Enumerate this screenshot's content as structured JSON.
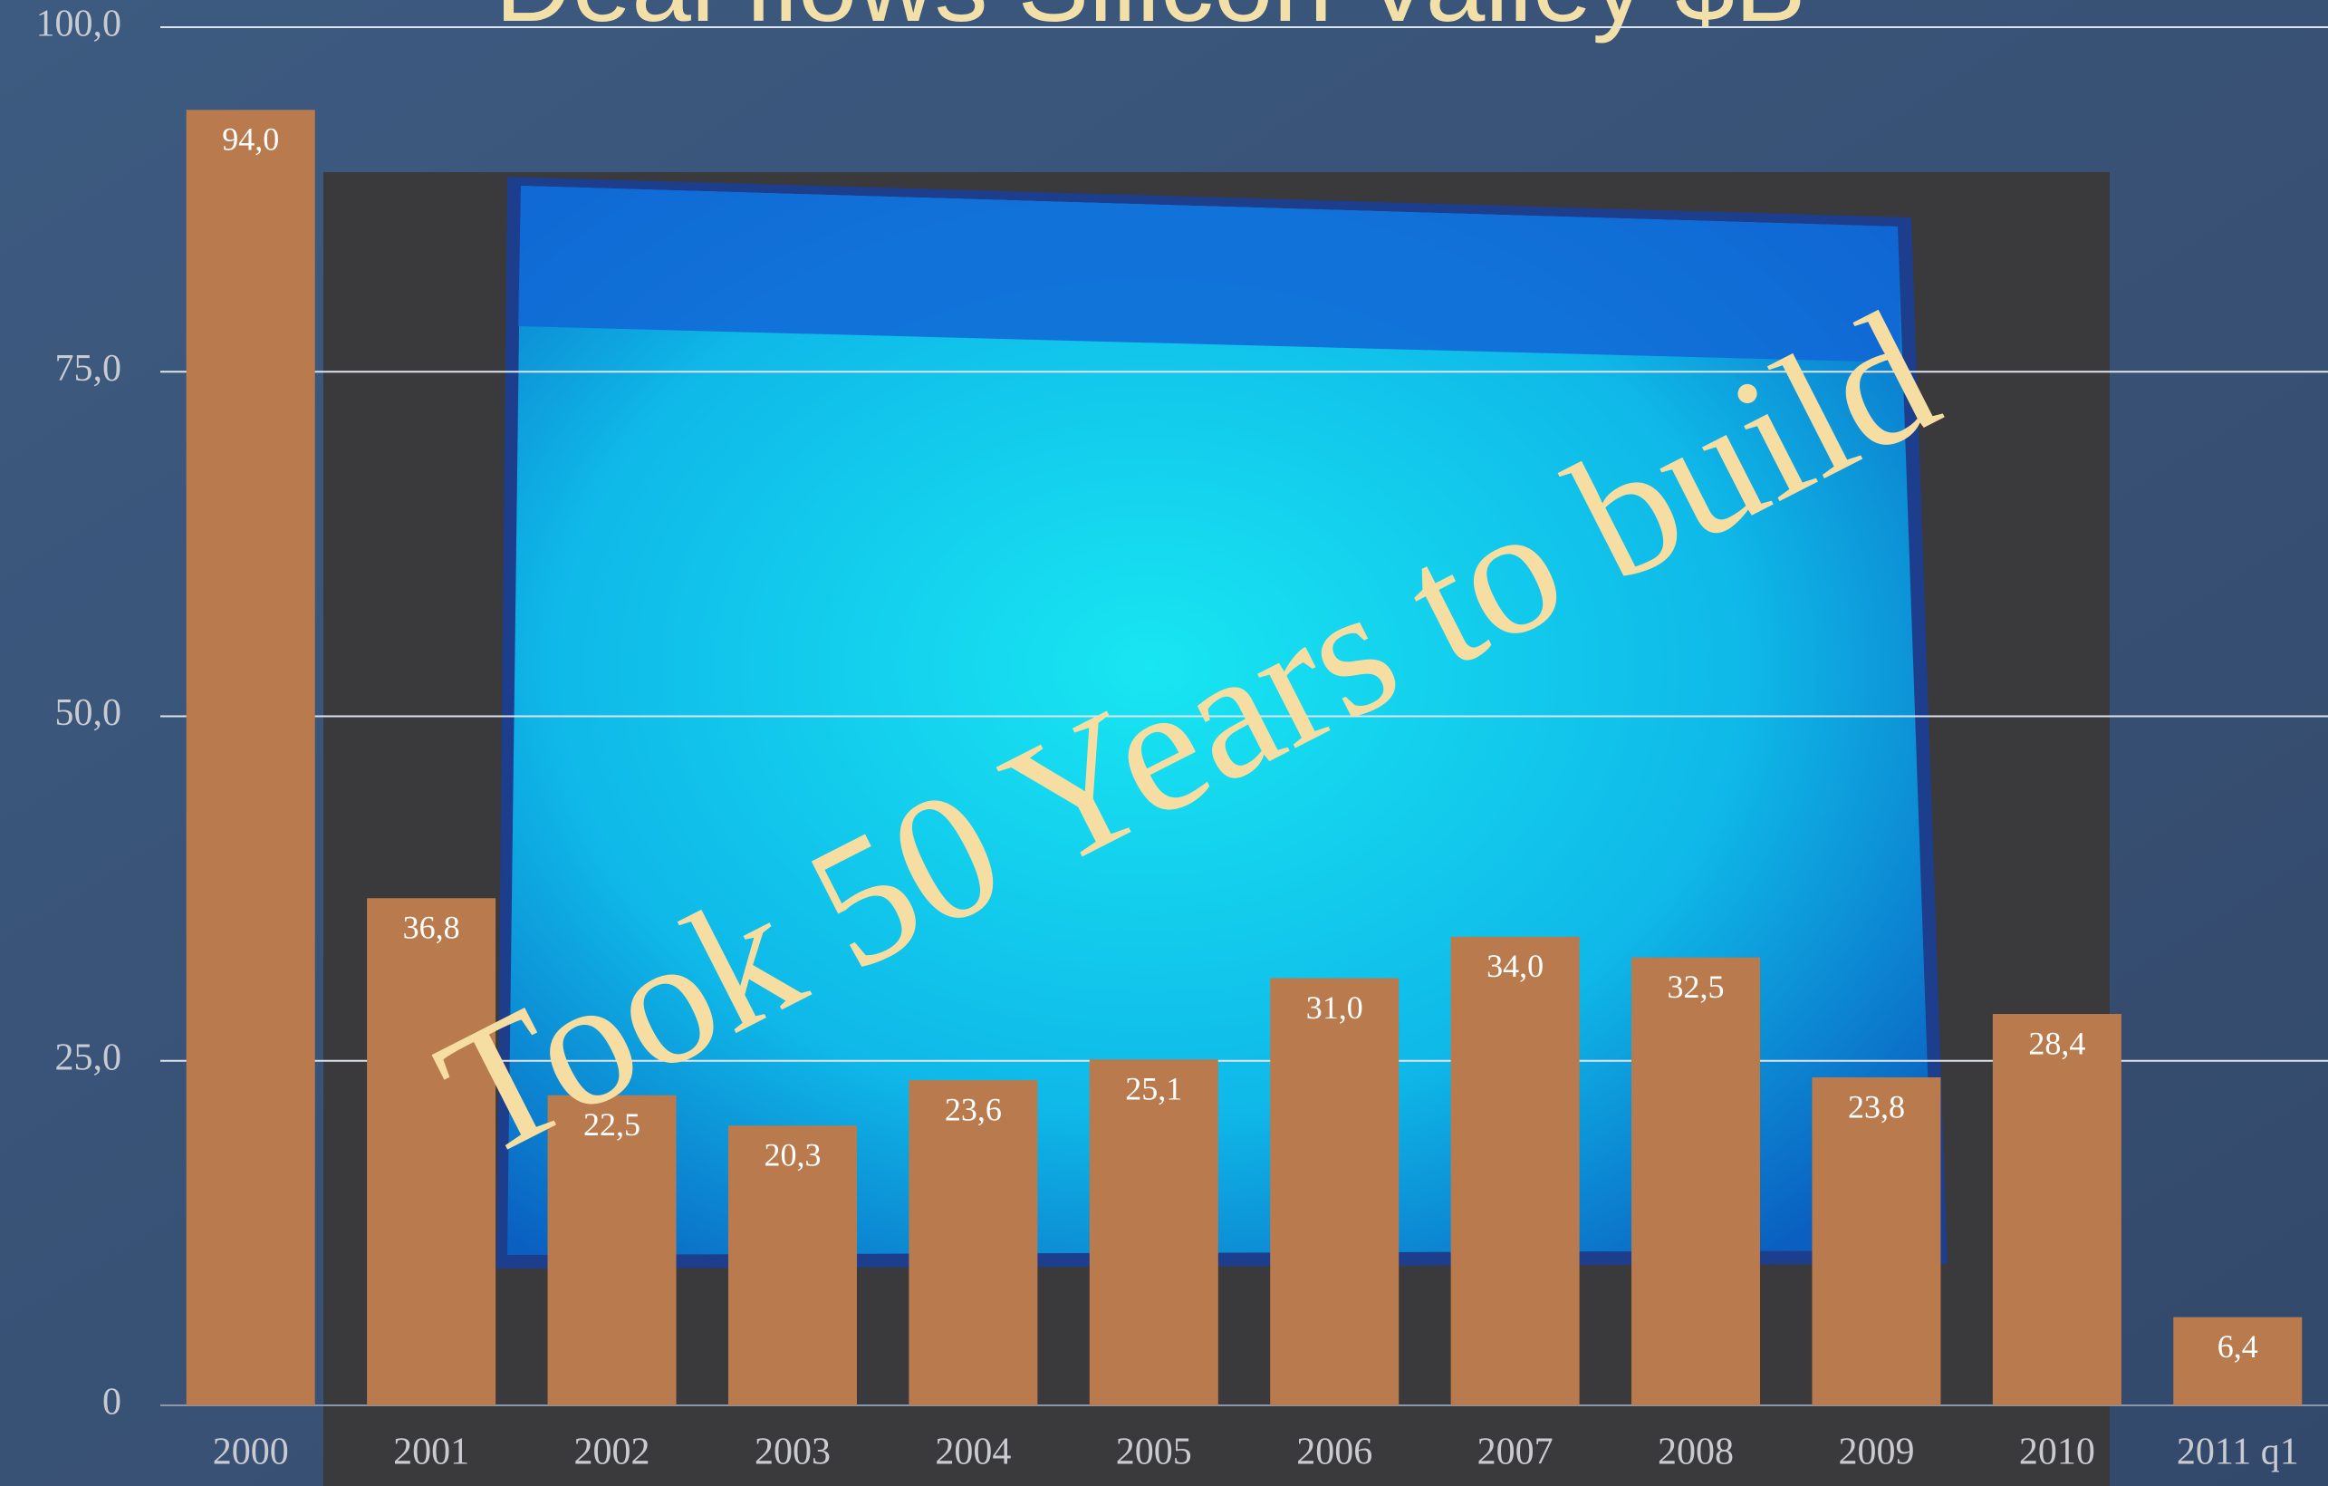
{
  "chart_data": {
    "type": "bar",
    "title": "Deal flows Silicon Valley $B",
    "annotation": "Took 50 Years to build",
    "categories": [
      "2000",
      "2001",
      "2002",
      "2003",
      "2004",
      "2005",
      "2006",
      "2007",
      "2008",
      "2009",
      "2010",
      "2011 q1"
    ],
    "values": [
      94.0,
      36.8,
      22.5,
      20.3,
      23.6,
      25.1,
      31.0,
      34.0,
      32.5,
      23.8,
      28.4,
      6.4
    ],
    "value_labels": [
      "94,0",
      "36,8",
      "22,5",
      "20,3",
      "23,6",
      "25,1",
      "31,0",
      "34,0",
      "32,5",
      "23,8",
      "28,4",
      "6,4"
    ],
    "color": "#b97b4d",
    "ylim": [
      0,
      100
    ],
    "yticks": [
      0,
      {
        "value": 25,
        "label": "25,0"
      },
      {
        "value": 50,
        "label": "50,0"
      },
      {
        "value": 75,
        "label": "75,0"
      },
      {
        "value": 100,
        "label": "100,0"
      }
    ],
    "grid": true
  }
}
